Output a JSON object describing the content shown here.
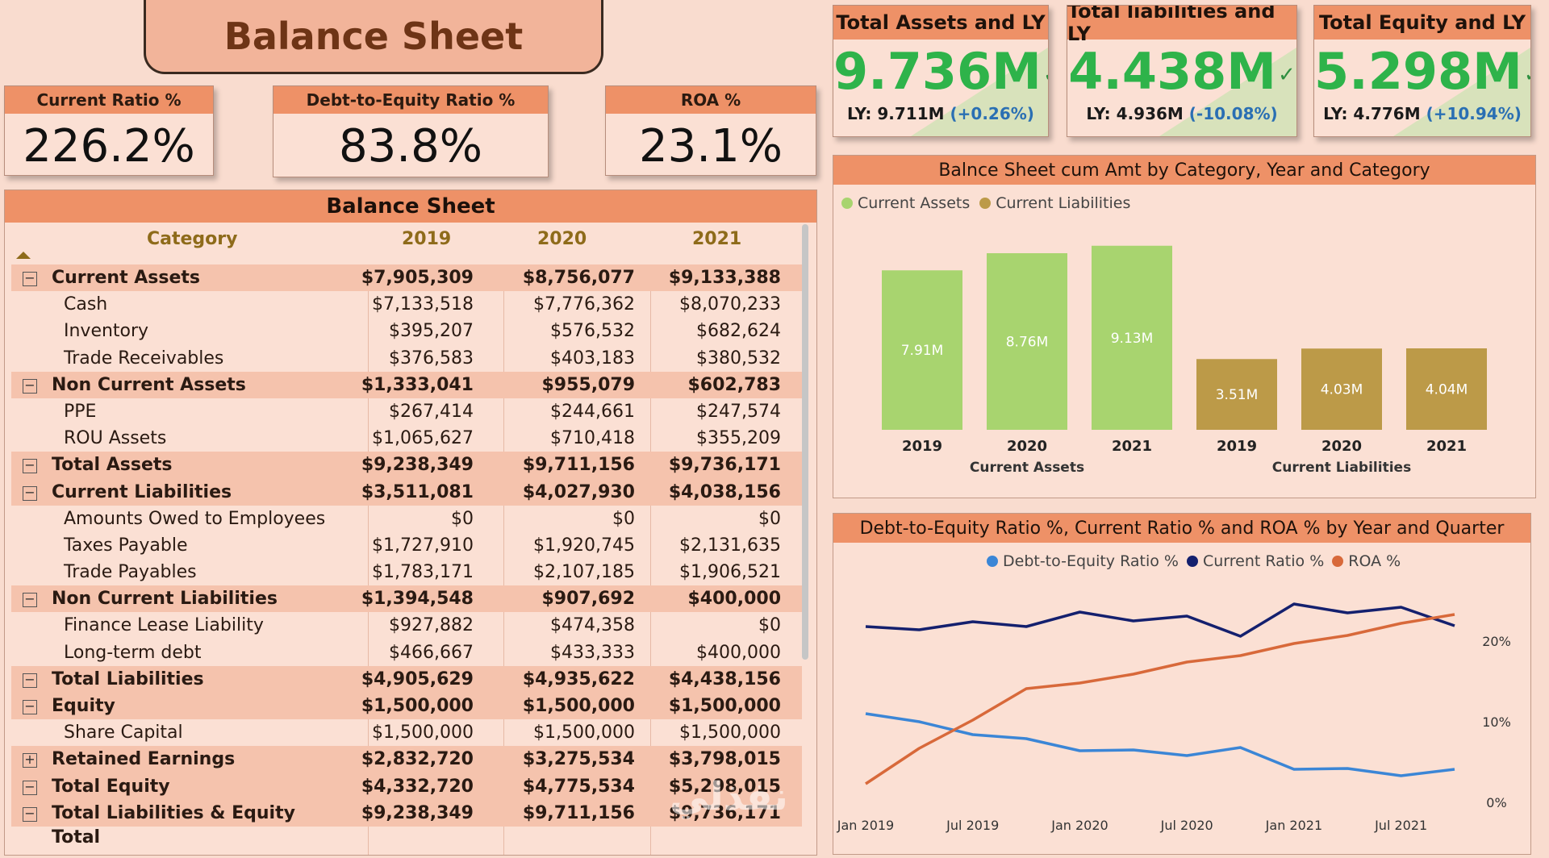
{
  "title": "Balance Sheet",
  "kpis": [
    {
      "label": "Current Ratio %",
      "value": "226.2%"
    },
    {
      "label": "Debt-to-Equity Ratio %",
      "value": "83.8%"
    },
    {
      "label": "ROA %",
      "value": "23.1%"
    }
  ],
  "big_kpis": [
    {
      "label": "Total Assets and LY",
      "value": "9.736M",
      "ly_prefix": "LY: 9.711M",
      "ly_change": "(+0.26%)"
    },
    {
      "label": "Total liabilities and LY",
      "value": "4.438M",
      "ly_prefix": "LY: 4.936M",
      "ly_change": "(-10.08%)"
    },
    {
      "label": "Total Equity and LY",
      "value": "5.298M",
      "ly_prefix": "LY: 4.776M",
      "ly_change": "(+10.94%)"
    }
  ],
  "check_glyph": "✓",
  "table": {
    "title": "Balance Sheet",
    "columns": [
      "Category",
      "2019",
      "2020",
      "2021"
    ],
    "rows": [
      {
        "name": "Current Assets",
        "bold": true,
        "toggle": "−",
        "v": [
          "$7,905,309",
          "$8,756,077",
          "$9,133,388"
        ]
      },
      {
        "name": "Cash",
        "bold": false,
        "v": [
          "$7,133,518",
          "$7,776,362",
          "$8,070,233"
        ]
      },
      {
        "name": "Inventory",
        "bold": false,
        "v": [
          "$395,207",
          "$576,532",
          "$682,624"
        ]
      },
      {
        "name": "Trade Receivables",
        "bold": false,
        "v": [
          "$376,583",
          "$403,183",
          "$380,532"
        ]
      },
      {
        "name": "Non Current Assets",
        "bold": true,
        "toggle": "−",
        "v": [
          "$1,333,041",
          "$955,079",
          "$602,783"
        ]
      },
      {
        "name": "PPE",
        "bold": false,
        "v": [
          "$267,414",
          "$244,661",
          "$247,574"
        ]
      },
      {
        "name": "ROU Assets",
        "bold": false,
        "v": [
          "$1,065,627",
          "$710,418",
          "$355,209"
        ]
      },
      {
        "name": "Total Assets",
        "bold": true,
        "toggle": "−",
        "v": [
          "$9,238,349",
          "$9,711,156",
          "$9,736,171"
        ]
      },
      {
        "name": "Current Liabilities",
        "bold": true,
        "toggle": "−",
        "v": [
          "$3,511,081",
          "$4,027,930",
          "$4,038,156"
        ]
      },
      {
        "name": "Amounts Owed to Employees",
        "bold": false,
        "v": [
          "$0",
          "$0",
          "$0"
        ]
      },
      {
        "name": "Taxes Payable",
        "bold": false,
        "v": [
          "$1,727,910",
          "$1,920,745",
          "$2,131,635"
        ]
      },
      {
        "name": "Trade Payables",
        "bold": false,
        "v": [
          "$1,783,171",
          "$2,107,185",
          "$1,906,521"
        ]
      },
      {
        "name": "Non Current Liabilities",
        "bold": true,
        "toggle": "−",
        "v": [
          "$1,394,548",
          "$907,692",
          "$400,000"
        ]
      },
      {
        "name": "Finance Lease Liability",
        "bold": false,
        "v": [
          "$927,882",
          "$474,358",
          "$0"
        ]
      },
      {
        "name": "Long-term debt",
        "bold": false,
        "v": [
          "$466,667",
          "$433,333",
          "$400,000"
        ]
      },
      {
        "name": "Total Liabilities",
        "bold": true,
        "toggle": "−",
        "v": [
          "$4,905,629",
          "$4,935,622",
          "$4,438,156"
        ]
      },
      {
        "name": "Equity",
        "bold": true,
        "toggle": "−",
        "v": [
          "$1,500,000",
          "$1,500,000",
          "$1,500,000"
        ]
      },
      {
        "name": "Share Capital",
        "bold": false,
        "v": [
          "$1,500,000",
          "$1,500,000",
          "$1,500,000"
        ]
      },
      {
        "name": "Retained Earnings",
        "bold": true,
        "toggle": "+",
        "v": [
          "$2,832,720",
          "$3,275,534",
          "$3,798,015"
        ]
      },
      {
        "name": "Total Equity",
        "bold": true,
        "toggle": "−",
        "v": [
          "$4,332,720",
          "$4,775,534",
          "$5,298,015"
        ]
      },
      {
        "name": "Total Liabilities & Equity",
        "bold": true,
        "toggle": "−",
        "v": [
          "$9,238,349",
          "$9,711,156",
          "$9,736,171"
        ]
      }
    ],
    "total_label": "Total"
  },
  "chart_data": [
    {
      "type": "bar",
      "title": "Balnce Sheet cum Amt by Category, Year and Category",
      "legend": [
        "Current Assets",
        "Current Liabilities"
      ],
      "colors": [
        "#a8d46f",
        "#bc9a48"
      ],
      "groups": [
        {
          "name": "Current Assets",
          "categories": [
            "2019",
            "2020",
            "2021"
          ],
          "values": [
            7.91,
            8.76,
            9.13
          ],
          "labels": [
            "7.91M",
            "8.76M",
            "9.13M"
          ]
        },
        {
          "name": "Current Liabilities",
          "categories": [
            "2019",
            "2020",
            "2021"
          ],
          "values": [
            3.51,
            4.03,
            4.04
          ],
          "labels": [
            "3.51M",
            "4.03M",
            "4.04M"
          ]
        }
      ],
      "ylim": [
        0,
        10
      ]
    },
    {
      "type": "line",
      "title": "Debt-to-Equity Ratio %, Current Ratio % and ROA % by Year and Quarter",
      "legend": [
        "Debt-to-Equity Ratio %",
        "Current Ratio %",
        "ROA %"
      ],
      "colors": [
        "#3b86d6",
        "#14206e",
        "#d8693a"
      ],
      "x_ticks": [
        "Jan 2019",
        "Jul 2019",
        "Jan 2020",
        "Jul 2020",
        "Jan 2021",
        "Jul 2021"
      ],
      "y_ticks": [
        "20%",
        "10%",
        "0%"
      ],
      "ylim": [
        0,
        28
      ],
      "x": [
        "2019Q1",
        "2019Q2",
        "2019Q3",
        "2019Q4",
        "2020Q1",
        "2020Q2",
        "2020Q3",
        "2020Q4",
        "2021Q1",
        "2021Q2",
        "2021Q3",
        "2021Q4"
      ],
      "series": [
        {
          "name": "Debt-to-Equity Ratio %",
          "values": [
            11.0,
            10.0,
            8.4,
            7.9,
            6.4,
            6.5,
            5.8,
            6.8,
            4.1,
            4.2,
            3.3,
            4.1
          ]
        },
        {
          "name": "Current Ratio %",
          "values": [
            21.8,
            21.4,
            22.4,
            21.8,
            23.6,
            22.5,
            23.1,
            20.6,
            24.6,
            23.5,
            24.2,
            21.9
          ]
        },
        {
          "name": "ROA %",
          "values": [
            2.3,
            6.7,
            10.2,
            14.1,
            14.8,
            15.9,
            17.4,
            18.2,
            19.7,
            20.7,
            22.2,
            23.3
          ]
        }
      ]
    }
  ]
}
